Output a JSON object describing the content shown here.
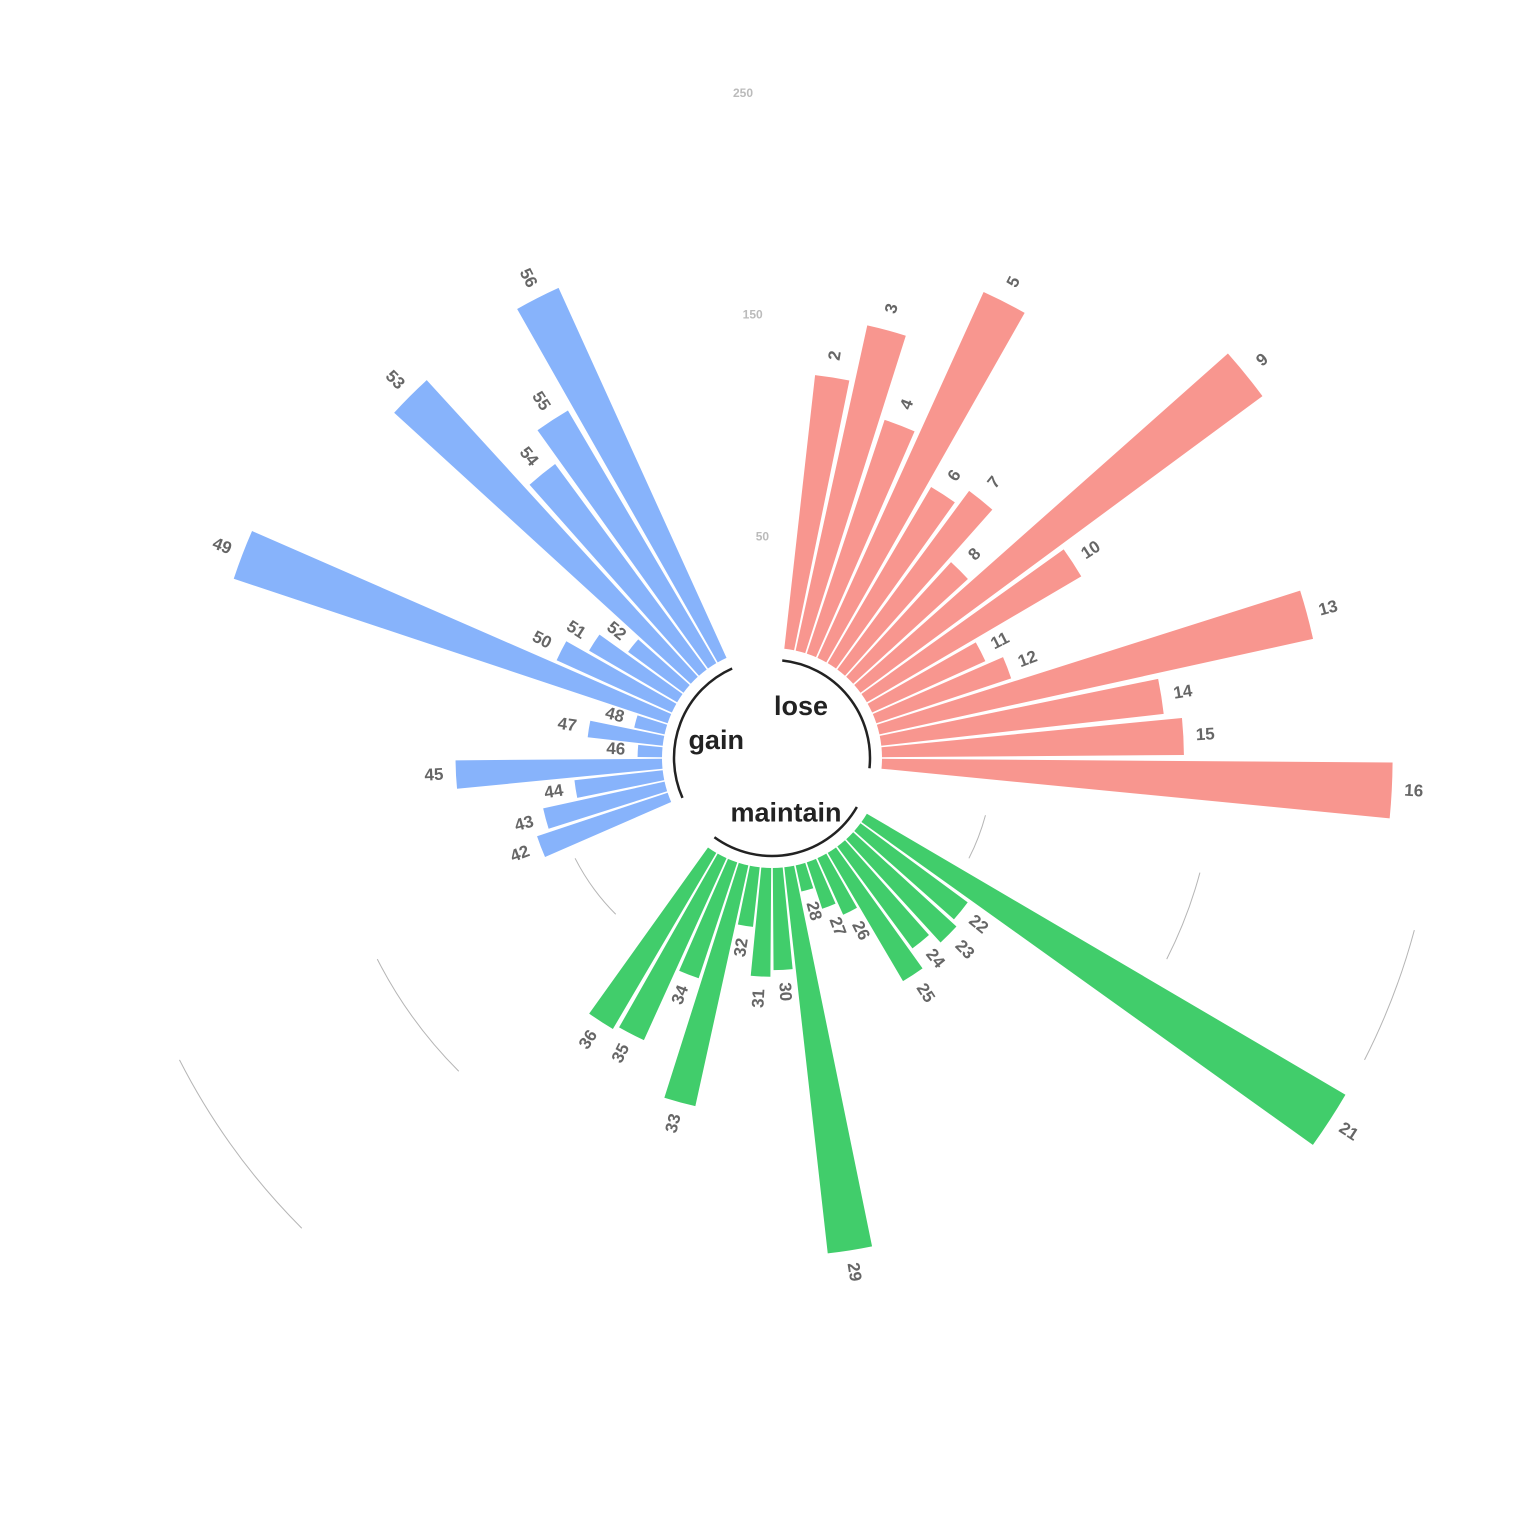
{
  "chart_data": {
    "type": "bar",
    "polar": true,
    "ylim": [
      -100,
      320
    ],
    "grid_values": [
      50,
      150,
      250
    ],
    "groups": [
      {
        "name": "lose",
        "color": "#F8968F",
        "label_angle": 30,
        "arc_range": [
          2,
          16
        ],
        "bars": [
          {
            "id": "2",
            "value": 124
          },
          {
            "id": "3",
            "value": 150
          },
          {
            "id": "4",
            "value": 111
          },
          {
            "id": "5",
            "value": 181
          },
          {
            "id": "6",
            "value": 92
          },
          {
            "id": "7",
            "value": 100
          },
          {
            "id": "8",
            "value": 70
          },
          {
            "id": "9",
            "value": 225
          },
          {
            "id": "10",
            "value": 112
          },
          {
            "id": "11",
            "value": 56
          },
          {
            "id": "12",
            "value": 64
          },
          {
            "id": "13",
            "value": 200
          },
          {
            "id": "14",
            "value": 128
          },
          {
            "id": "15",
            "value": 136
          },
          {
            "id": "16",
            "value": 230
          }
        ]
      },
      {
        "name": "maintain",
        "color": "#41CD6B",
        "label_angle": 166,
        "arc_range": [
          21,
          36
        ],
        "bars": [
          {
            "id": "21",
            "value": 250
          },
          {
            "id": "22",
            "value": 60
          },
          {
            "id": "23",
            "value": 63
          },
          {
            "id": "24",
            "value": 57
          },
          {
            "id": "25",
            "value": 67
          },
          {
            "id": "26",
            "value": 28
          },
          {
            "id": "27",
            "value": 22
          },
          {
            "id": "28",
            "value": 12
          },
          {
            "id": "29",
            "value": 175
          },
          {
            "id": "30",
            "value": 46
          },
          {
            "id": "31",
            "value": 49
          },
          {
            "id": "32",
            "value": 27
          },
          {
            "id": "33",
            "value": 111
          },
          {
            "id": "34",
            "value": 55
          },
          {
            "id": "35",
            "value": 90
          },
          {
            "id": "36",
            "value": 92
          }
        ]
      },
      {
        "name": "gain",
        "color": "#87B3FB",
        "label_angle": 286,
        "arc_range": [
          42,
          56
        ],
        "bars": [
          {
            "id": "42",
            "value": 62
          },
          {
            "id": "43",
            "value": 56
          },
          {
            "id": "44",
            "value": 40
          },
          {
            "id": "45",
            "value": 93
          },
          {
            "id": "46",
            "value": 11
          },
          {
            "id": "47",
            "value": 34
          },
          {
            "id": "48",
            "value": 14
          },
          {
            "id": "49",
            "value": 206
          },
          {
            "id": "50",
            "value": 57
          },
          {
            "id": "51",
            "value": 46
          },
          {
            "id": "52",
            "value": 31
          },
          {
            "id": "53",
            "value": 181
          },
          {
            "id": "54",
            "value": 115
          },
          {
            "id": "55",
            "value": 132
          },
          {
            "id": "56",
            "value": 183
          }
        ]
      }
    ]
  }
}
